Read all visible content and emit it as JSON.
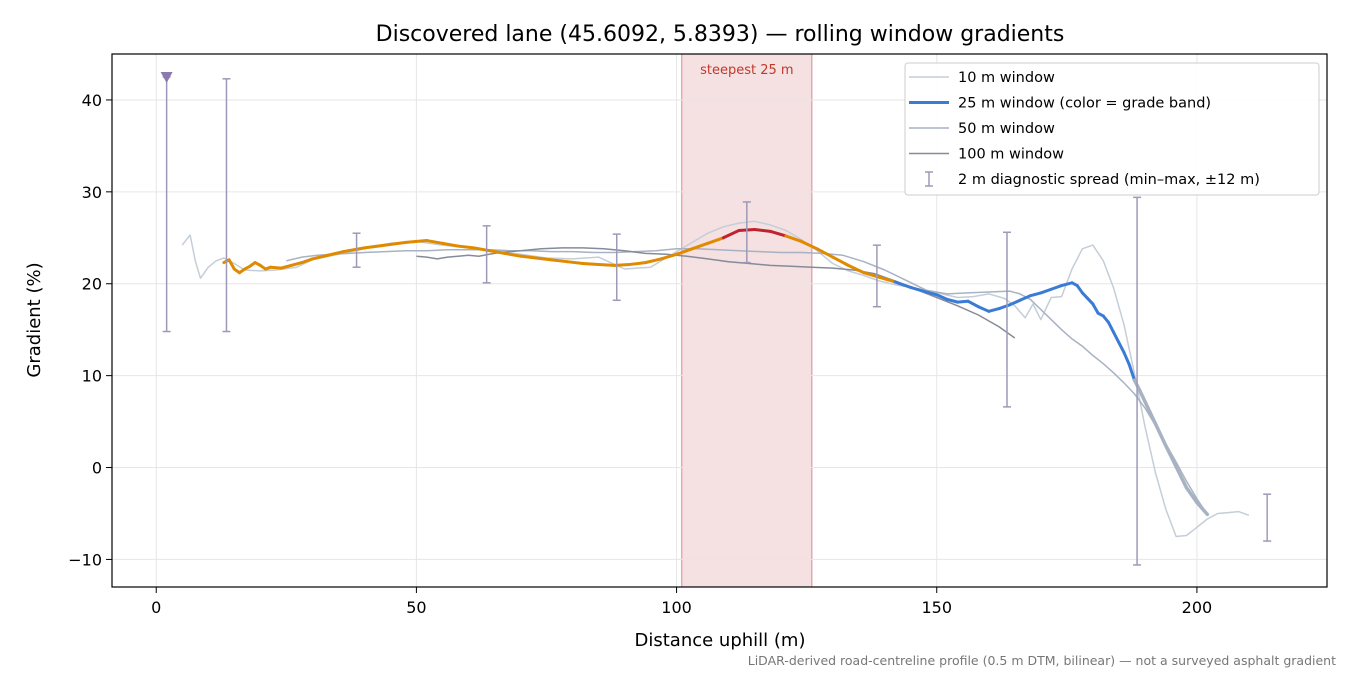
{
  "chart_data": {
    "type": "line",
    "title": "Discovered lane (45.6092, 5.8393) — rolling window gradients",
    "xlabel": "Distance uphill (m)",
    "ylabel": "Gradient (%)",
    "xlim": [
      -8.5,
      225
    ],
    "ylim": [
      -13,
      45
    ],
    "xticks": [
      0,
      50,
      100,
      150,
      200
    ],
    "yticks": [
      -10,
      0,
      10,
      20,
      30,
      40
    ],
    "grid": true,
    "legend_position": "top-right",
    "footnote": "LiDAR-derived road-centreline profile (0.5 m DTM, bilinear) — not a surveyed asphalt gradient",
    "highlight": {
      "label": "steepest 25 m",
      "x_start": 101,
      "x_end": 126
    },
    "start_marker": {
      "x": 2,
      "y": 42.5
    },
    "series": [
      {
        "name": "10 m window",
        "color": "#c5cdd8",
        "width": 1.5,
        "x": [
          5,
          6.5,
          7.5,
          8.5,
          10,
          11.5,
          13,
          15,
          17,
          20,
          23,
          27,
          30,
          35,
          40,
          45,
          50,
          55,
          60,
          65,
          70,
          75,
          80,
          85,
          90,
          95,
          100,
          103,
          106,
          109,
          112,
          115,
          118,
          121,
          124,
          127,
          130,
          133,
          136,
          139,
          142,
          145,
          148,
          151,
          154,
          157,
          160,
          163,
          165,
          167,
          168.5,
          170,
          172,
          174,
          176,
          178,
          180,
          182,
          184,
          186,
          188,
          190,
          192,
          194,
          196,
          198,
          200,
          202,
          204,
          206,
          208,
          210
        ],
        "y": [
          24.2,
          25.3,
          22.5,
          20.6,
          21.8,
          22.5,
          22.8,
          22.2,
          21.5,
          21.4,
          21.5,
          21.8,
          22.6,
          23.2,
          23.8,
          24.4,
          24.6,
          24.2,
          23.9,
          23.6,
          23.2,
          22.8,
          22.7,
          22.9,
          21.6,
          21.8,
          23.5,
          24.5,
          25.5,
          26.2,
          26.6,
          26.8,
          26.4,
          25.8,
          24.8,
          23.6,
          22.2,
          21.4,
          20.9,
          20.3,
          19.9,
          19.6,
          19.3,
          18.9,
          18.5,
          18.6,
          18.9,
          18.4,
          17.6,
          16.3,
          17.8,
          16.1,
          18.5,
          18.6,
          21.6,
          23.8,
          24.2,
          22.5,
          19.5,
          15.5,
          10.2,
          4.5,
          -0.5,
          -4.5,
          -7.5,
          -7.4,
          -6.5,
          -5.6,
          -5.0,
          -4.9,
          -4.8,
          -5.2
        ]
      },
      {
        "name": "25 m window (color = grade band)",
        "color": "#3a7bd5",
        "width": 3,
        "x": [
          13,
          14,
          15,
          16,
          17,
          18,
          19,
          20,
          21,
          22,
          24,
          26,
          28,
          30,
          33,
          36,
          40,
          44,
          48,
          52,
          55,
          58,
          61,
          64,
          67,
          70,
          73,
          76,
          79,
          82,
          85,
          88,
          91,
          94,
          97,
          100,
          103,
          106,
          109,
          112,
          115,
          118,
          121,
          124,
          127,
          130,
          133,
          136,
          139,
          142,
          145,
          148,
          150,
          152,
          154,
          156,
          158,
          160,
          162,
          164,
          166,
          168,
          170,
          172,
          174,
          176,
          177,
          178,
          179,
          180,
          181,
          182,
          183,
          184,
          185,
          186,
          187,
          188,
          189,
          190,
          192,
          194,
          196,
          198,
          200,
          202
        ],
        "y": [
          22.3,
          22.6,
          21.6,
          21.2,
          21.6,
          21.9,
          22.3,
          22.0,
          21.6,
          21.8,
          21.7,
          22.0,
          22.3,
          22.7,
          23.1,
          23.5,
          23.9,
          24.2,
          24.5,
          24.7,
          24.4,
          24.1,
          23.9,
          23.6,
          23.3,
          23.0,
          22.8,
          22.6,
          22.4,
          22.2,
          22.1,
          22.0,
          22.1,
          22.3,
          22.7,
          23.2,
          23.8,
          24.4,
          25.0,
          25.8,
          25.9,
          25.7,
          25.2,
          24.6,
          23.8,
          22.9,
          22.0,
          21.2,
          20.7,
          20.2,
          19.6,
          19.1,
          18.8,
          18.3,
          18.0,
          18.1,
          17.5,
          17.0,
          17.3,
          17.7,
          18.2,
          18.7,
          19.0,
          19.4,
          19.8,
          20.1,
          19.8,
          19.0,
          18.4,
          17.8,
          16.8,
          16.5,
          15.8,
          14.7,
          13.6,
          12.5,
          11.2,
          9.5,
          8.4,
          7.2,
          4.8,
          2.4,
          0.1,
          -2.2,
          -3.8,
          -5.1
        ]
      },
      {
        "name": "50 m window",
        "color": "#a7b2c3",
        "width": 1.5,
        "x": [
          25,
          28,
          31,
          34,
          37,
          40,
          44,
          48,
          52,
          56,
          60,
          64,
          68,
          72,
          76,
          80,
          84,
          88,
          92,
          96,
          100,
          104,
          108,
          112,
          116,
          120,
          124,
          128,
          132,
          136,
          140,
          144,
          148,
          152,
          156,
          160,
          164,
          166,
          168,
          170,
          172,
          174,
          176,
          178,
          180,
          182,
          184,
          186,
          188,
          190,
          192,
          194,
          196,
          198,
          200,
          202
        ],
        "y": [
          22.5,
          22.9,
          23.1,
          23.2,
          23.3,
          23.4,
          23.5,
          23.6,
          23.6,
          23.7,
          23.7,
          23.7,
          23.6,
          23.6,
          23.5,
          23.5,
          23.4,
          23.4,
          23.5,
          23.6,
          23.8,
          23.8,
          23.7,
          23.6,
          23.5,
          23.4,
          23.4,
          23.3,
          23.1,
          22.4,
          21.5,
          20.4,
          19.3,
          18.9,
          19.0,
          19.1,
          19.2,
          18.9,
          18.3,
          17.2,
          16.1,
          15.0,
          14.0,
          13.2,
          12.2,
          11.3,
          10.3,
          9.2,
          8.0,
          6.5,
          4.6,
          2.6,
          0.6,
          -1.5,
          -3.4,
          -5.1
        ]
      },
      {
        "name": "100 m window",
        "color": "#858b98",
        "width": 1.5,
        "x": [
          50,
          52,
          54,
          56,
          58,
          60,
          62,
          64,
          66,
          68,
          70,
          74,
          78,
          82,
          86,
          90,
          94,
          98,
          102,
          106,
          110,
          114,
          118,
          122,
          126,
          130,
          134,
          138,
          142,
          146,
          150,
          154,
          158,
          162,
          165
        ],
        "y": [
          23.0,
          22.9,
          22.7,
          22.9,
          23.0,
          23.1,
          23.0,
          23.2,
          23.4,
          23.5,
          23.6,
          23.8,
          23.9,
          23.9,
          23.8,
          23.6,
          23.3,
          23.2,
          23.0,
          22.7,
          22.4,
          22.2,
          22.0,
          21.9,
          21.8,
          21.7,
          21.5,
          21.1,
          20.3,
          19.4,
          18.5,
          17.6,
          16.6,
          15.3,
          14.1
        ]
      }
    ],
    "band_colors": {
      "orange": "#e08a00",
      "red": "#c1232e",
      "blue": "#3a7bd5",
      "grey": "#a7b2c3"
    },
    "error_bars": {
      "name": "2 m diagnostic spread (min–max, ±12 m)",
      "color": "#9d9ab8",
      "points": [
        {
          "x": 2,
          "lo": 14.8,
          "hi": 42.5
        },
        {
          "x": 13.5,
          "lo": 14.8,
          "hi": 42.3
        },
        {
          "x": 38.5,
          "lo": 21.8,
          "hi": 25.5
        },
        {
          "x": 63.5,
          "lo": 20.1,
          "hi": 26.3
        },
        {
          "x": 88.5,
          "lo": 18.2,
          "hi": 25.4
        },
        {
          "x": 113.5,
          "lo": 22.3,
          "hi": 28.9
        },
        {
          "x": 138.5,
          "lo": 17.5,
          "hi": 24.2
        },
        {
          "x": 163.5,
          "lo": 6.6,
          "hi": 25.6
        },
        {
          "x": 188.5,
          "lo": -10.6,
          "hi": 29.4
        },
        {
          "x": 213.5,
          "lo": -8.0,
          "hi": -2.9
        }
      ]
    }
  }
}
